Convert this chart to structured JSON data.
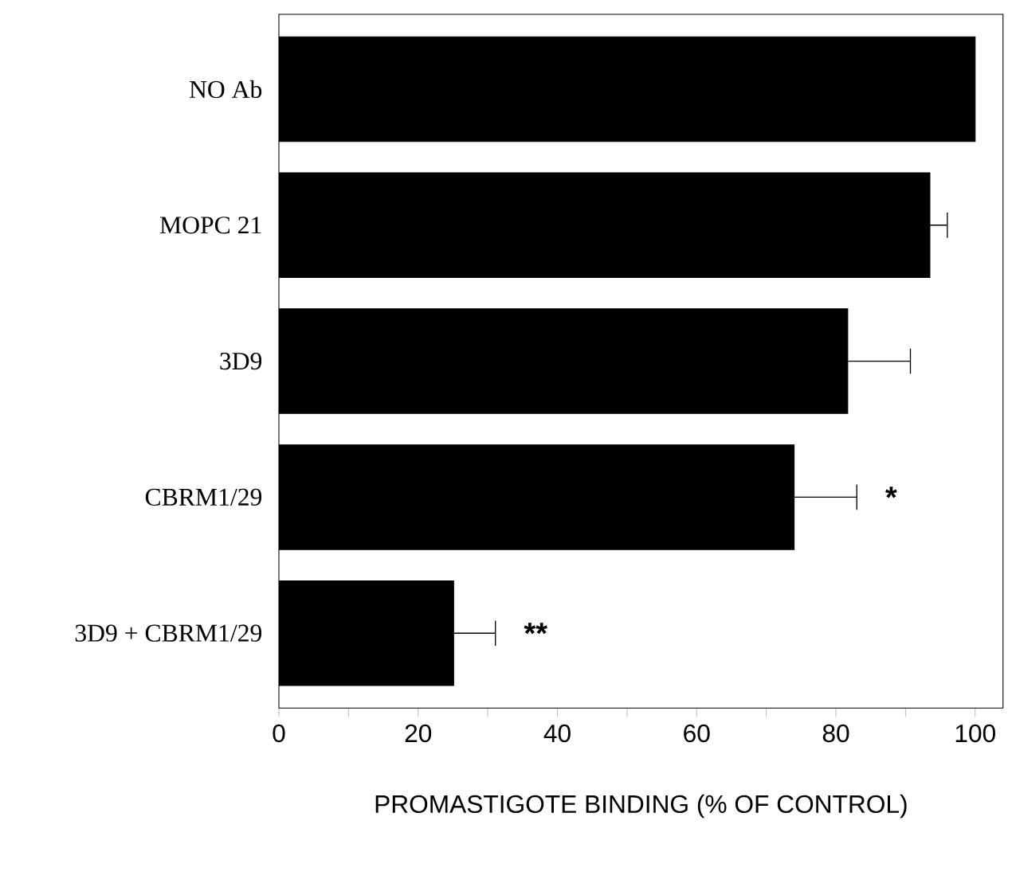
{
  "chart_data": {
    "type": "bar",
    "orientation": "horizontal",
    "xlabel": "PROMASTIGOTE BINDING (% OF CONTROL)",
    "categories": [
      "NO Ab",
      "MOPC 21",
      "3D9",
      "CBRM1/29",
      "3D9 + CBRM1/29"
    ],
    "values": [
      100,
      93.5,
      81.7,
      74,
      25.1
    ],
    "errors": [
      null,
      2.5,
      9,
      9,
      6
    ],
    "color": "#000000",
    "xlim": [
      0,
      104
    ],
    "xticks": [
      0,
      {
        "value": 10,
        "label": null
      },
      20,
      {
        "value": 30,
        "label": null
      },
      40,
      {
        "value": 50,
        "label": null
      },
      60,
      {
        "value": 70,
        "label": null
      },
      80,
      {
        "value": 90,
        "label": null
      },
      100
    ],
    "annotations": [
      "*",
      "**"
    ]
  }
}
